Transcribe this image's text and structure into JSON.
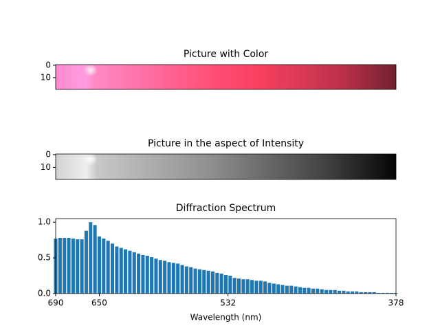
{
  "chart_data": [
    {
      "type": "image",
      "title": "Picture with Color",
      "ylim": [
        19.5,
        -0.5
      ],
      "yticks": [
        0,
        10
      ]
    },
    {
      "type": "image",
      "title": "Picture in the aspect of Intensity",
      "ylim": [
        19.5,
        -0.5
      ],
      "yticks": [
        0,
        10
      ]
    },
    {
      "type": "bar",
      "title": "Diffraction Spectrum",
      "xlabel": "Wavelength (nm)",
      "color": "#1f77b4",
      "xlim": [
        690,
        378
      ],
      "xticks": [
        690,
        650,
        532,
        378
      ],
      "ylim": [
        0,
        1.05
      ],
      "yticks": [
        {
          "value": 0,
          "label": "0.0"
        },
        {
          "value": 0.5,
          "label": "0.5"
        },
        {
          "value": 1,
          "label": "1.0"
        }
      ],
      "x": [
        690,
        686,
        682,
        678,
        674,
        670,
        666,
        662,
        658,
        654,
        650,
        646,
        642,
        638,
        634,
        630,
        626,
        622,
        618,
        614,
        610,
        606,
        602,
        598,
        594,
        590,
        586,
        582,
        578,
        574,
        570,
        566,
        562,
        558,
        554,
        550,
        546,
        542,
        538,
        534,
        530,
        526,
        522,
        518,
        514,
        510,
        506,
        502,
        498,
        494,
        490,
        486,
        482,
        478,
        474,
        470,
        466,
        462,
        458,
        454,
        450,
        446,
        442,
        438,
        434,
        430,
        426,
        422,
        418,
        414,
        410,
        406,
        402,
        398,
        394,
        390,
        386,
        382,
        378
      ],
      "values": [
        0.77,
        0.78,
        0.78,
        0.78,
        0.77,
        0.76,
        0.76,
        0.88,
        1.0,
        0.96,
        0.8,
        0.77,
        0.74,
        0.7,
        0.66,
        0.64,
        0.62,
        0.6,
        0.58,
        0.56,
        0.54,
        0.53,
        0.51,
        0.49,
        0.47,
        0.46,
        0.44,
        0.43,
        0.42,
        0.4,
        0.38,
        0.37,
        0.35,
        0.34,
        0.33,
        0.32,
        0.31,
        0.29,
        0.28,
        0.26,
        0.25,
        0.22,
        0.21,
        0.2,
        0.2,
        0.19,
        0.18,
        0.18,
        0.17,
        0.15,
        0.14,
        0.13,
        0.12,
        0.11,
        0.11,
        0.1,
        0.09,
        0.08,
        0.08,
        0.07,
        0.07,
        0.06,
        0.05,
        0.05,
        0.05,
        0.04,
        0.04,
        0.03,
        0.03,
        0.03,
        0.02,
        0.02,
        0.02,
        0.02,
        0.01,
        0.01,
        0.01,
        0.01,
        0.01
      ]
    }
  ]
}
